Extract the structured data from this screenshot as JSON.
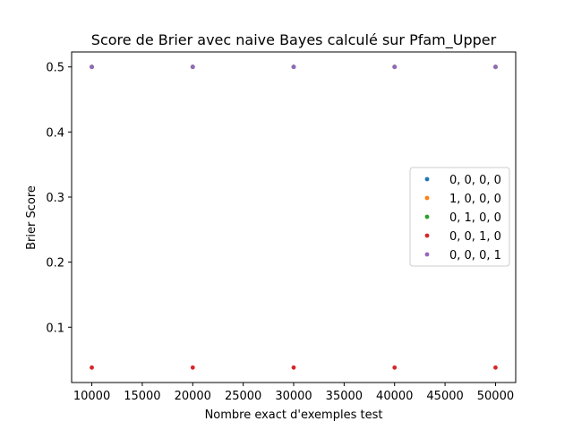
{
  "chart_data": {
    "type": "scatter",
    "title": "Score de Brier avec naive Bayes calculé sur Pfam_Upper",
    "xlabel": "Nombre exact d'exemples test",
    "ylabel": "Brier Score",
    "xlim": [
      8000,
      52000
    ],
    "ylim": [
      0.015,
      0.523
    ],
    "xticks": [
      10000,
      15000,
      20000,
      25000,
      30000,
      35000,
      40000,
      45000,
      50000
    ],
    "yticks": [
      0.1,
      0.2,
      0.3,
      0.4,
      0.5
    ],
    "x": [
      10000,
      20000,
      30000,
      40000,
      50000
    ],
    "series": [
      {
        "name": "0, 0, 0, 0",
        "color": "#1f77b4",
        "values": [
          0.5,
          0.5,
          0.5,
          0.5,
          0.5
        ]
      },
      {
        "name": "1, 0, 0, 0",
        "color": "#ff7f0e",
        "values": [
          0.5,
          0.5,
          0.5,
          0.5,
          0.5
        ]
      },
      {
        "name": "0, 1, 0, 0",
        "color": "#2ca02c",
        "values": [
          0.5,
          0.5,
          0.5,
          0.5,
          0.5
        ]
      },
      {
        "name": "0, 0, 1, 0",
        "color": "#d62728",
        "values": [
          0.038,
          0.038,
          0.038,
          0.038,
          0.038
        ]
      },
      {
        "name": "0, 0, 0, 1",
        "color": "#9467bd",
        "values": [
          0.5,
          0.5,
          0.5,
          0.5,
          0.5
        ]
      }
    ],
    "grid": false,
    "legend_position": "center-right"
  }
}
